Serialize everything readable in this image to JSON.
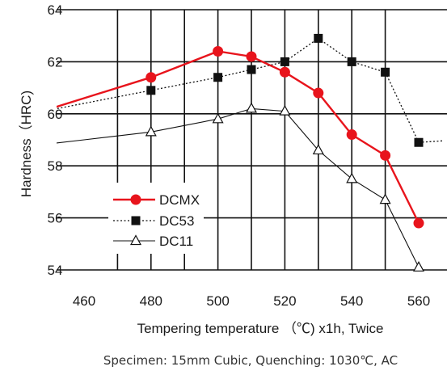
{
  "chart_data": {
    "type": "line",
    "xlabel": "Tempering temperature （℃) x1h,  Twice",
    "ylabel": "Hardness（HRC)",
    "xlim": [
      460,
      560
    ],
    "ylim": [
      54,
      64
    ],
    "xticks": [
      "460",
      "480",
      "500",
      "520",
      "540",
      "560"
    ],
    "yticks": [
      "54",
      "56",
      "58",
      "60",
      "62",
      "64"
    ],
    "grid": true,
    "legend_position": "lower-left",
    "caption": "Specimen: 15mm Cubic, Quenching: 1030℃, AC",
    "series": [
      {
        "name": "DCMX",
        "color": "#e8141c",
        "style": "solid",
        "marker": "circle",
        "x": [
          480,
          500,
          510,
          520,
          530,
          540,
          550,
          560
        ],
        "y": [
          61.4,
          62.4,
          62.2,
          61.6,
          60.8,
          59.2,
          58.4,
          55.8
        ],
        "lead_in": {
          "x": 460,
          "y": 60.6
        }
      },
      {
        "name": "DC53",
        "color": "#111111",
        "style": "dotted",
        "marker": "square",
        "x": [
          480,
          500,
          510,
          520,
          530,
          540,
          550,
          560
        ],
        "y": [
          60.9,
          61.4,
          61.7,
          62.0,
          62.9,
          62.0,
          61.6,
          58.9
        ],
        "lead_in": {
          "x": 460,
          "y": 60.4
        }
      },
      {
        "name": "DC11",
        "color": "#111111",
        "style": "solid-thin",
        "marker": "triangle",
        "x": [
          480,
          500,
          510,
          520,
          530,
          540,
          550,
          560
        ],
        "y": [
          59.3,
          59.8,
          60.2,
          60.1,
          58.6,
          57.5,
          56.7,
          54.1
        ],
        "lead_in": {
          "x": 460,
          "y": 59.0
        }
      }
    ]
  }
}
